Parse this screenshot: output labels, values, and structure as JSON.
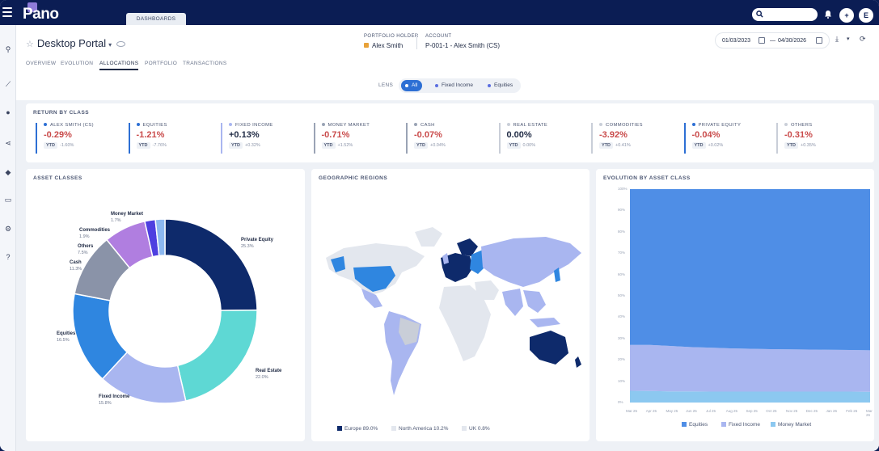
{
  "app": {
    "logo": "Pano",
    "tab": "DASHBOARDS",
    "avatar": "E",
    "add_glyph": "+"
  },
  "left_nav": [
    "search-icon",
    "chart-line-icon",
    "user-icon",
    "share-icon",
    "diamond-icon",
    "monitor-icon",
    "gear-icon",
    "help-icon"
  ],
  "header": {
    "title": "Desktop Portal",
    "portfolio_holder_label": "PORTFOLIO HOLDER",
    "portfolio_holder": "Alex Smith",
    "account_label": "ACCOUNT",
    "account": "P-001-1 - Alex Smith (CS)",
    "date_from": "01/03/2023",
    "date_sep": "—",
    "date_to": "04/30/2026"
  },
  "tabs": [
    "OVERVIEW",
    "EVOLUTION",
    "ALLOCATIONS",
    "PORTFOLIO",
    "TRANSACTIONS"
  ],
  "active_tab": "ALLOCATIONS",
  "lens": {
    "label": "LENS",
    "options": [
      "All",
      "Fixed Income",
      "Equities"
    ],
    "selected": "All"
  },
  "return_by_class": {
    "title": "RETURN BY CLASS",
    "items": [
      {
        "name": "ALEX SMITH (CS)",
        "value": "-0.29%",
        "ytd_label": "YTD",
        "ytd": "-1.60%",
        "color": "#2d6fd4"
      },
      {
        "name": "EQUITIES",
        "value": "-1.21%",
        "ytd_label": "YTD",
        "ytd": "-7.76%",
        "color": "#2d6fd4"
      },
      {
        "name": "FIXED INCOME",
        "value": "+0.13%",
        "ytd_label": "YTD",
        "ytd": "+0.32%",
        "color": "#a9b6f0"
      },
      {
        "name": "MONEY MARKET",
        "value": "-0.71%",
        "ytd_label": "YTD",
        "ytd": "+1.52%",
        "color": "#9aa3b5"
      },
      {
        "name": "CASH",
        "value": "-0.07%",
        "ytd_label": "YTD",
        "ytd": "+0.04%",
        "color": "#9aa3b5"
      },
      {
        "name": "REAL ESTATE",
        "value": "0.00%",
        "ytd_label": "YTD",
        "ytd": "0.00%",
        "color": "#c9ced8"
      },
      {
        "name": "COMMODITIES",
        "value": "-3.92%",
        "ytd_label": "YTD",
        "ytd": "+0.41%",
        "color": "#c9ced8"
      },
      {
        "name": "PRIVATE EQUITY",
        "value": "-0.04%",
        "ytd_label": "YTD",
        "ytd": "+0.02%",
        "color": "#2d6fd4"
      },
      {
        "name": "OTHERS",
        "value": "-0.31%",
        "ytd_label": "YTD",
        "ytd": "+0.35%",
        "color": "#c9ced8"
      }
    ]
  },
  "asset_classes": {
    "title": "ASSET CLASSES",
    "chart_data": {
      "type": "pie",
      "categories": [
        "Private Equity",
        "Real Estate",
        "Fixed Income",
        "Equities",
        "Cash",
        "Others",
        "Commodities",
        "Money Market"
      ],
      "values": [
        25.3,
        22.0,
        15.8,
        16.5,
        11.3,
        7.5,
        1.9,
        1.7
      ],
      "labels": [
        "25.3%",
        "22.0%",
        "15.8%",
        "16.5%",
        "11.3%",
        "7.5%",
        "1.9%",
        "1.7%"
      ],
      "colors": [
        "#0e2a6b",
        "#5ed8d4",
        "#a9b6f0",
        "#2f86e0",
        "#8a93a8",
        "#b07ee0",
        "#4e3fe0",
        "#8cb8f0"
      ]
    }
  },
  "geographic_regions": {
    "title": "GEOGRAPHIC REGIONS",
    "legend": [
      {
        "name": "Europe",
        "pct": "89.0%",
        "color": "#0e2a6b"
      },
      {
        "name": "North America",
        "pct": "10.2%",
        "color": "#e3e7ee"
      },
      {
        "name": "UK",
        "pct": "0.8%",
        "color": "#e3e7ee"
      }
    ]
  },
  "evolution": {
    "title": "EVOLUTION BY ASSET CLASS",
    "y_ticks": [
      "100%",
      "90%",
      "80%",
      "70%",
      "60%",
      "50%",
      "40%",
      "30%",
      "20%",
      "10%",
      "0%"
    ],
    "x_ticks": [
      "Mar 25",
      "Apr 25",
      "May 25",
      "Jun 25",
      "Jul 25",
      "Aug 25",
      "Sep 25",
      "Oct 25",
      "Nov 25",
      "Dec 25",
      "Jan 26",
      "Feb 26",
      "Mar 26"
    ],
    "chart_data": {
      "type": "area",
      "stacked": true,
      "ylim": [
        0,
        100
      ],
      "series": [
        {
          "name": "Equities",
          "color": "#4f8ee6",
          "values": [
            73,
            73,
            73.5,
            74,
            74.3,
            74.6,
            74.8,
            75,
            75.1,
            75.2,
            75.3,
            75.4,
            75.5
          ]
        },
        {
          "name": "Fixed Income",
          "color": "#a9b6f0",
          "values": [
            21.5,
            21.6,
            21.3,
            20.8,
            20.6,
            20.3,
            20.1,
            19.9,
            19.8,
            19.7,
            19.6,
            19.5,
            19.5
          ]
        },
        {
          "name": "Money Market",
          "color": "#8cc8f0",
          "values": [
            5.5,
            5.4,
            5.2,
            5.2,
            5.1,
            5.1,
            5.1,
            5.1,
            5.1,
            5.1,
            5.1,
            5.1,
            5.0
          ]
        }
      ]
    }
  }
}
